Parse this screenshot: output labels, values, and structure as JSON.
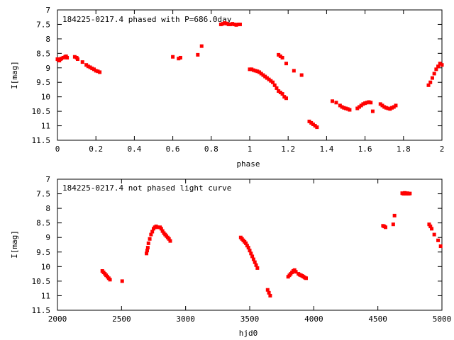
{
  "colors": {
    "points": "#ff0000",
    "axes": "#000000",
    "background": "#ffffff"
  },
  "chart_data": [
    {
      "type": "scatter",
      "title": "184225-0217.4 phased with P=686.0day",
      "xlabel": "phase",
      "ylabel": "I[mag]",
      "xlim": [
        0,
        2
      ],
      "ylim": [
        11.5,
        7
      ],
      "y_inverted": true,
      "x_ticks": [
        0,
        0.2,
        0.4,
        0.6,
        0.8,
        1,
        1.2,
        1.4,
        1.6,
        1.8,
        2
      ],
      "x_tick_labels": [
        "0",
        "0.2",
        "0.4",
        "0.6",
        "0.8",
        "1",
        "1.2",
        "1.4",
        "1.6",
        "1.8",
        "2"
      ],
      "y_ticks": [
        7,
        7.5,
        8,
        8.5,
        9,
        9.5,
        10,
        10.5,
        11,
        11.5
      ],
      "y_tick_labels": [
        "7",
        "7.5",
        "8",
        "8.5",
        "9",
        "9.5",
        "10",
        "10.5",
        "11",
        "11.5"
      ],
      "grid": false,
      "legend": "none",
      "series": [
        {
          "x": [
            0.0,
            0.005,
            0.01,
            0.015,
            0.02,
            0.03,
            0.04,
            0.045,
            0.05,
            0.09,
            0.1,
            0.105,
            0.13,
            0.15,
            0.16,
            0.17,
            0.18,
            0.19,
            0.2,
            0.21,
            0.22,
            0.6,
            0.63,
            0.64,
            0.73,
            0.75,
            0.85,
            0.86,
            0.87,
            0.88,
            0.89,
            0.9,
            0.91,
            0.92,
            0.93,
            0.94,
            0.95,
            1.0,
            1.01,
            1.02,
            1.03,
            1.04,
            1.05,
            1.06,
            1.07,
            1.08,
            1.09,
            1.1,
            1.11,
            1.12,
            1.13,
            1.14,
            1.15,
            1.16,
            1.17,
            1.18,
            1.19,
            1.15,
            1.16,
            1.17,
            1.19,
            1.23,
            1.27,
            1.31,
            1.32,
            1.33,
            1.34,
            1.35,
            1.43,
            1.45,
            1.47,
            1.48,
            1.49,
            1.5,
            1.51,
            1.52,
            1.56,
            1.57,
            1.58,
            1.59,
            1.6,
            1.61,
            1.62,
            1.63,
            1.64,
            1.68,
            1.69,
            1.7,
            1.71,
            1.72,
            1.73,
            1.74,
            1.75,
            1.76,
            1.93,
            1.94,
            1.95,
            1.96,
            1.97,
            1.98,
            1.99,
            2.0
          ],
          "y": [
            8.7,
            8.72,
            8.75,
            8.7,
            8.68,
            8.65,
            8.62,
            8.6,
            8.65,
            8.62,
            8.65,
            8.7,
            8.8,
            8.9,
            8.95,
            8.98,
            9.02,
            9.05,
            9.1,
            9.12,
            9.15,
            8.62,
            8.68,
            8.65,
            8.55,
            8.25,
            7.5,
            7.48,
            7.45,
            7.47,
            7.5,
            7.5,
            7.48,
            7.5,
            7.52,
            7.5,
            7.5,
            9.05,
            9.05,
            9.08,
            9.1,
            9.12,
            9.15,
            9.2,
            9.25,
            9.3,
            9.35,
            9.4,
            9.45,
            9.5,
            9.6,
            9.7,
            9.8,
            9.85,
            9.9,
            10.0,
            10.05,
            8.55,
            8.6,
            8.65,
            8.85,
            9.1,
            9.25,
            10.85,
            10.9,
            10.95,
            11.0,
            11.05,
            10.15,
            10.2,
            10.3,
            10.35,
            10.38,
            10.4,
            10.42,
            10.45,
            10.4,
            10.35,
            10.3,
            10.25,
            10.22,
            10.2,
            10.18,
            10.2,
            10.5,
            10.25,
            10.3,
            10.35,
            10.38,
            10.4,
            10.42,
            10.38,
            10.35,
            10.3,
            9.6,
            9.5,
            9.35,
            9.2,
            9.05,
            8.95,
            8.85,
            8.9
          ]
        }
      ]
    },
    {
      "type": "scatter",
      "title": "184225-0217.4 not phased light curve",
      "xlabel": "hjd0",
      "ylabel": "I[mag]",
      "xlim": [
        2000,
        5000
      ],
      "ylim": [
        11.5,
        7
      ],
      "y_inverted": true,
      "x_ticks": [
        2000,
        2500,
        3000,
        3500,
        4000,
        4500,
        5000
      ],
      "x_tick_labels": [
        "2000",
        "2500",
        "3000",
        "3500",
        "4000",
        "4500",
        "5000"
      ],
      "y_ticks": [
        7,
        7.5,
        8,
        8.5,
        9,
        9.5,
        10,
        10.5,
        11,
        11.5
      ],
      "y_tick_labels": [
        "7",
        "7.5",
        "8",
        "8.5",
        "9",
        "9.5",
        "10",
        "10.5",
        "11",
        "11.5"
      ],
      "grid": false,
      "legend": "none",
      "series": [
        {
          "x": [
            2350,
            2360,
            2370,
            2380,
            2390,
            2400,
            2410,
            2505,
            2695,
            2700,
            2705,
            2710,
            2720,
            2730,
            2740,
            2750,
            2760,
            2770,
            2780,
            2800,
            2810,
            2820,
            2830,
            2840,
            2850,
            2860,
            2870,
            2880,
            3430,
            3440,
            3450,
            3460,
            3470,
            3480,
            3490,
            3500,
            3510,
            3520,
            3530,
            3540,
            3550,
            3560,
            3640,
            3650,
            3660,
            3800,
            3810,
            3820,
            3830,
            3840,
            3850,
            3860,
            3880,
            3890,
            3900,
            3910,
            3920,
            3930,
            3940,
            4540,
            4550,
            4560,
            4620,
            4630,
            4690,
            4700,
            4710,
            4720,
            4730,
            4740,
            4750,
            4900,
            4910,
            4920,
            4940,
            4970,
            4990
          ],
          "y": [
            10.15,
            10.2,
            10.25,
            10.3,
            10.35,
            10.4,
            10.45,
            10.5,
            9.55,
            9.45,
            9.35,
            9.2,
            9.05,
            8.9,
            8.8,
            8.7,
            8.65,
            8.62,
            8.65,
            8.65,
            8.7,
            8.78,
            8.85,
            8.9,
            8.95,
            9.0,
            9.05,
            9.12,
            9.0,
            9.05,
            9.1,
            9.15,
            9.2,
            9.28,
            9.35,
            9.45,
            9.55,
            9.65,
            9.75,
            9.85,
            9.95,
            10.05,
            10.8,
            10.9,
            11.0,
            10.35,
            10.3,
            10.25,
            10.2,
            10.15,
            10.12,
            10.18,
            10.25,
            10.28,
            10.3,
            10.32,
            10.35,
            10.38,
            10.4,
            8.6,
            8.62,
            8.65,
            8.55,
            8.25,
            7.48,
            7.5,
            7.47,
            7.5,
            7.48,
            7.5,
            7.49,
            8.55,
            8.62,
            8.7,
            8.9,
            9.1,
            9.3
          ]
        }
      ]
    }
  ]
}
